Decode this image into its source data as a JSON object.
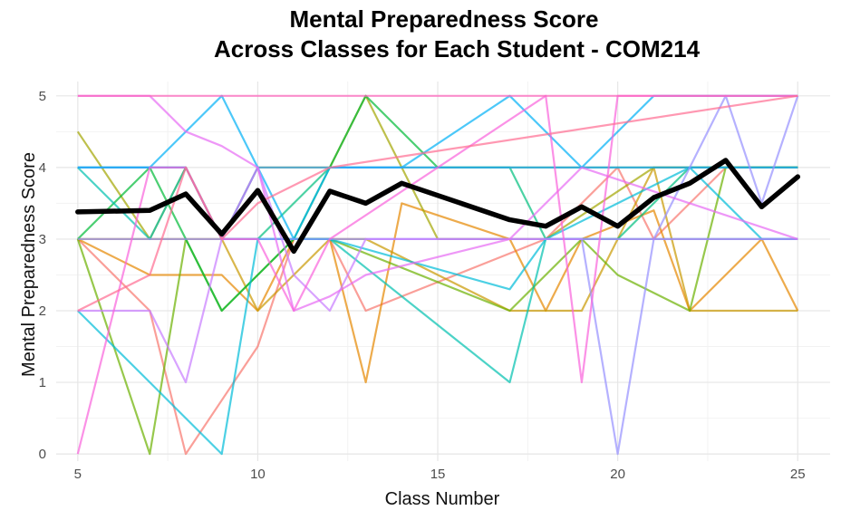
{
  "chart_data": {
    "type": "line",
    "title": "Mental Preparedness Score",
    "subtitle": "Across Classes for Each Student - COM214",
    "xlabel": "Class Number",
    "ylabel": "Mental Preparedness Score",
    "xlim": [
      4.4,
      25.9
    ],
    "ylim": [
      -0.1,
      5.2
    ],
    "x_ticks": [
      5,
      10,
      15,
      20,
      25
    ],
    "y_ticks": [
      0,
      1,
      2,
      3,
      4,
      5
    ],
    "grid": true,
    "legend": "none",
    "series": [
      {
        "color": "#F8766D",
        "points": [
          [
            5,
            3
          ],
          [
            7,
            2
          ],
          [
            8,
            0
          ],
          [
            10,
            1.5
          ],
          [
            11,
            3
          ],
          [
            12,
            3
          ],
          [
            13,
            2
          ],
          [
            18,
            3
          ],
          [
            20,
            4
          ],
          [
            21,
            3
          ],
          [
            23,
            4
          ],
          [
            25,
            4
          ]
        ]
      },
      {
        "color": "#E58700",
        "points": [
          [
            5,
            3
          ],
          [
            7,
            2.5
          ],
          [
            9,
            2.5
          ],
          [
            10,
            2
          ],
          [
            11,
            3
          ],
          [
            12,
            3
          ],
          [
            13,
            1
          ],
          [
            14,
            3.5
          ],
          [
            17,
            3
          ],
          [
            18,
            2
          ],
          [
            19,
            3
          ],
          [
            21,
            3.4
          ],
          [
            22,
            2
          ],
          [
            24,
            3
          ],
          [
            25,
            2
          ]
        ]
      },
      {
        "color": "#C99800",
        "points": [
          [
            5,
            3
          ],
          [
            8,
            3
          ],
          [
            9,
            3
          ],
          [
            10,
            2
          ],
          [
            12,
            3
          ],
          [
            13,
            3
          ],
          [
            17,
            2
          ],
          [
            18,
            2
          ],
          [
            19,
            2
          ],
          [
            20,
            3
          ],
          [
            21,
            4
          ],
          [
            22,
            2
          ],
          [
            25,
            2
          ]
        ]
      },
      {
        "color": "#A3A500",
        "points": [
          [
            5,
            4.5
          ],
          [
            7,
            3
          ],
          [
            8,
            4
          ],
          [
            9,
            3
          ],
          [
            10,
            4
          ],
          [
            12,
            4
          ],
          [
            13,
            5
          ],
          [
            15,
            3
          ],
          [
            18,
            3
          ],
          [
            21,
            4
          ],
          [
            25,
            4
          ]
        ]
      },
      {
        "color": "#6BB100",
        "points": [
          [
            5,
            3
          ],
          [
            7,
            0
          ],
          [
            8,
            3
          ],
          [
            9,
            2
          ],
          [
            10,
            2.5
          ],
          [
            11,
            3
          ],
          [
            12,
            3
          ],
          [
            17,
            2
          ],
          [
            19,
            3
          ],
          [
            20,
            2.5
          ],
          [
            22,
            2
          ],
          [
            23,
            4
          ],
          [
            25,
            4
          ]
        ]
      },
      {
        "color": "#00BA38",
        "points": [
          [
            5,
            3
          ],
          [
            7,
            4
          ],
          [
            8,
            3
          ],
          [
            9,
            2
          ],
          [
            10,
            2.5
          ],
          [
            11,
            3
          ],
          [
            12,
            4
          ],
          [
            13,
            5
          ],
          [
            15,
            4
          ],
          [
            25,
            4
          ]
        ]
      },
      {
        "color": "#00BF7D",
        "points": [
          [
            5,
            4
          ],
          [
            8,
            4
          ],
          [
            9,
            3
          ],
          [
            10,
            3
          ],
          [
            12,
            4
          ],
          [
            17,
            4
          ],
          [
            18,
            3
          ],
          [
            20,
            3
          ],
          [
            22,
            4
          ],
          [
            23,
            4
          ],
          [
            25,
            4
          ]
        ]
      },
      {
        "color": "#00C0AF",
        "points": [
          [
            5,
            4
          ],
          [
            7,
            3
          ],
          [
            8,
            4
          ],
          [
            9,
            3
          ],
          [
            10,
            3
          ],
          [
            12,
            3
          ],
          [
            17,
            1
          ],
          [
            18,
            3
          ],
          [
            25,
            3
          ]
        ]
      },
      {
        "color": "#00BCD8",
        "points": [
          [
            5,
            2
          ],
          [
            7,
            1
          ],
          [
            8,
            0.5
          ],
          [
            9,
            0
          ],
          [
            10,
            3
          ],
          [
            11,
            3
          ],
          [
            12,
            3
          ],
          [
            17,
            2.3
          ],
          [
            18,
            3
          ],
          [
            20,
            3.5
          ],
          [
            22,
            4
          ],
          [
            24,
            3
          ],
          [
            25,
            3
          ]
        ]
      },
      {
        "color": "#00B0F6",
        "points": [
          [
            5,
            4
          ],
          [
            7,
            4
          ],
          [
            9,
            5
          ],
          [
            10,
            4
          ],
          [
            11,
            3
          ],
          [
            12,
            4
          ],
          [
            14,
            4
          ],
          [
            17,
            5
          ],
          [
            19,
            4
          ],
          [
            21,
            5
          ],
          [
            25,
            5
          ]
        ]
      },
      {
        "color": "#35A2FF",
        "points": [
          [
            5,
            4
          ],
          [
            8,
            4
          ],
          [
            9,
            3
          ],
          [
            10,
            4
          ],
          [
            12,
            4
          ],
          [
            17,
            4
          ],
          [
            25,
            4
          ]
        ]
      },
      {
        "color": "#9590FF",
        "points": [
          [
            5,
            3
          ],
          [
            9,
            3
          ],
          [
            12,
            3
          ],
          [
            17,
            3
          ],
          [
            18,
            3
          ],
          [
            19,
            3
          ],
          [
            20,
            0
          ],
          [
            21,
            3
          ],
          [
            22,
            4
          ],
          [
            23,
            5
          ],
          [
            24,
            3.5
          ],
          [
            25,
            5
          ]
        ]
      },
      {
        "color": "#C77CFF",
        "points": [
          [
            5,
            2
          ],
          [
            7,
            2
          ],
          [
            8,
            1
          ],
          [
            9,
            3
          ],
          [
            10,
            4
          ],
          [
            11,
            2.5
          ],
          [
            12,
            2
          ],
          [
            13,
            3
          ],
          [
            17,
            3
          ],
          [
            20,
            3
          ],
          [
            25,
            3
          ]
        ]
      },
      {
        "color": "#E76BF3",
        "points": [
          [
            5,
            5
          ],
          [
            7,
            5
          ],
          [
            8,
            4.5
          ],
          [
            9,
            4.3
          ],
          [
            10,
            4
          ],
          [
            11,
            2
          ],
          [
            12,
            2.2
          ],
          [
            13,
            2.5
          ],
          [
            17,
            3
          ],
          [
            19,
            4
          ],
          [
            25,
            3
          ]
        ]
      },
      {
        "color": "#FA62DB",
        "points": [
          [
            5,
            0
          ],
          [
            7,
            4
          ],
          [
            8,
            4
          ],
          [
            9,
            3
          ],
          [
            10,
            3
          ],
          [
            11,
            2
          ],
          [
            12,
            3
          ],
          [
            18,
            5
          ],
          [
            19,
            1
          ],
          [
            20,
            5
          ],
          [
            25,
            5
          ]
        ]
      },
      {
        "color": "#FF62BC",
        "points": [
          [
            5,
            5
          ],
          [
            10,
            5
          ],
          [
            15,
            5
          ],
          [
            20,
            5
          ],
          [
            25,
            5
          ]
        ]
      },
      {
        "color": "#FF6C91",
        "points": [
          [
            5,
            2
          ],
          [
            7,
            2.5
          ],
          [
            8,
            4
          ],
          [
            9,
            3
          ],
          [
            10,
            3.5
          ],
          [
            12,
            4
          ],
          [
            25,
            5
          ]
        ]
      }
    ],
    "mean_series": {
      "color": "#000000",
      "points": [
        [
          5,
          3.38
        ],
        [
          7,
          3.4
        ],
        [
          8,
          3.63
        ],
        [
          9,
          3.07
        ],
        [
          10,
          3.68
        ],
        [
          11,
          2.83
        ],
        [
          12,
          3.67
        ],
        [
          13,
          3.5
        ],
        [
          14,
          3.78
        ],
        [
          17,
          3.27
        ],
        [
          18,
          3.18
        ],
        [
          19,
          3.45
        ],
        [
          20,
          3.18
        ],
        [
          21,
          3.58
        ],
        [
          22,
          3.78
        ],
        [
          23,
          4.1
        ],
        [
          24,
          3.45
        ],
        [
          25,
          3.87
        ]
      ]
    }
  }
}
